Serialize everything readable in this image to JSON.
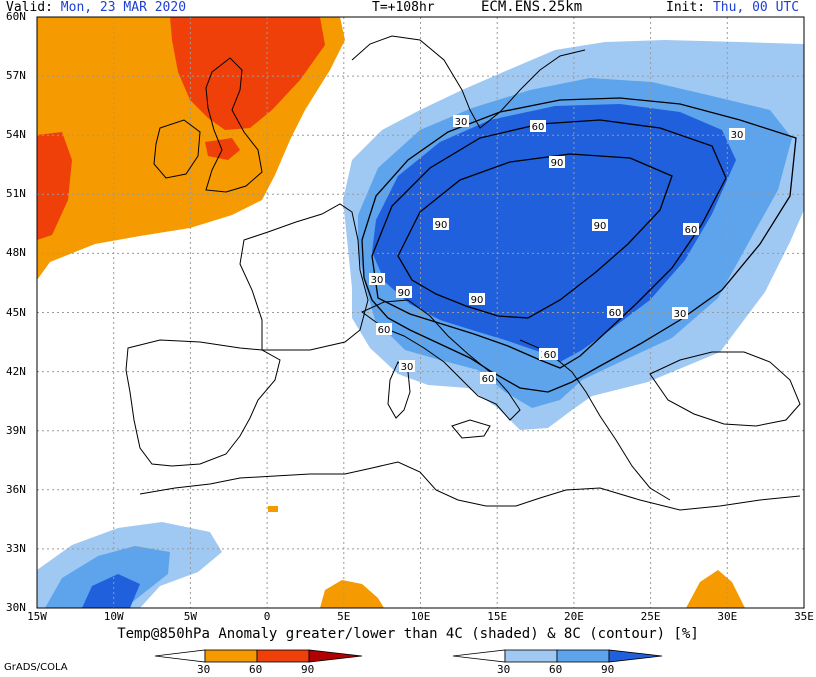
{
  "header": {
    "valid_label": "Valid:",
    "valid_value": "Mon, 23 MAR 2020",
    "forecast_time": "T=+108hr",
    "model": "ECM.ENS.25km",
    "init_label": "Init:",
    "init_value": "Thu, 00 UTC"
  },
  "map": {
    "lon_ticks": [
      "15W",
      "10W",
      "5W",
      "0",
      "5E",
      "10E",
      "15E",
      "20E",
      "25E",
      "30E",
      "35E"
    ],
    "lat_ticks": [
      "60N",
      "57N",
      "54N",
      "51N",
      "48N",
      "45N",
      "42N",
      "39N",
      "36N",
      "33N",
      "30N"
    ],
    "contour_labels": [
      "30",
      "60",
      "90",
      "30",
      "60",
      "90",
      "90",
      "90",
      "60",
      "30",
      "30",
      "90",
      "60",
      "60",
      "30",
      "30",
      "60"
    ],
    "colors": {
      "warm_30": "#f59a00",
      "warm_60": "#f0400a",
      "warm_90": "#b00000",
      "cold_30": "#9fc9f3",
      "cold_60": "#5da4ec",
      "cold_90": "#2060dc",
      "grid": "#9a9a9a"
    }
  },
  "caption": "Temp@850hPa Anomaly greater/lower than 4C (shaded) & 8C (contour) [%]",
  "legend_warm": {
    "ticks": [
      "30",
      "60",
      "90"
    ]
  },
  "legend_cold": {
    "ticks": [
      "30",
      "60",
      "90"
    ]
  },
  "footer": "GrADS/COLA"
}
